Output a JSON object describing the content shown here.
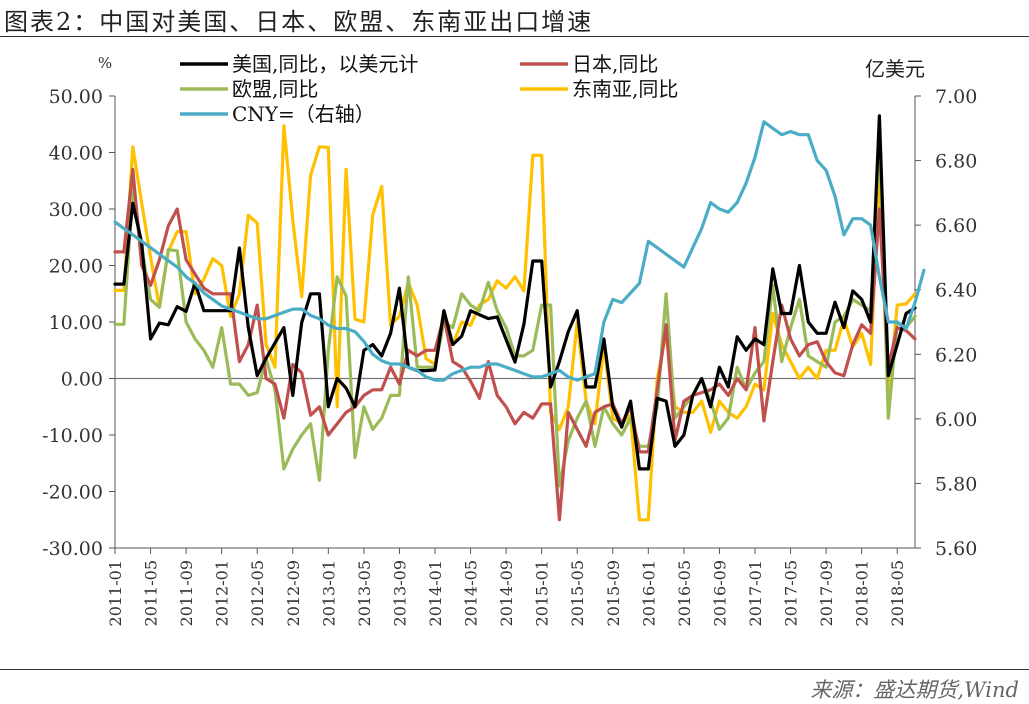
{
  "title": "图表2：中国对美国、日本、欧盟、东南亚出口增速",
  "source": "来源：盛达期货,Wind",
  "chart_data": {
    "type": "line",
    "left_unit": "%",
    "right_unit": "亿美元",
    "left_axis": {
      "min": -30,
      "max": 50,
      "ticks": [
        "50.00",
        "40.00",
        "30.00",
        "20.00",
        "10.00",
        "0.00",
        "-10.00",
        "-20.00",
        "-30.00"
      ]
    },
    "right_axis": {
      "min": 5.6,
      "max": 7.0,
      "ticks": [
        "7.00",
        "6.80",
        "6.60",
        "6.40",
        "6.20",
        "6.00",
        "5.80",
        "5.60"
      ]
    },
    "x_ticks": [
      "2011-01",
      "2011-05",
      "2011-09",
      "2012-01",
      "2012-05",
      "2012-09",
      "2013-01",
      "2013-05",
      "2013-09",
      "2014-01",
      "2014-05",
      "2014-09",
      "2015-01",
      "2015-05",
      "2015-09",
      "2016-01",
      "2016-05",
      "2016-09",
      "2017-01",
      "2017-05",
      "2017-09",
      "2018-01",
      "2018-05"
    ],
    "x_start": "2011-01",
    "legend": [
      {
        "name": "美国,同比，以美元计",
        "color": "#000000"
      },
      {
        "name": "日本,同比",
        "color": "#c0504d"
      },
      {
        "name": "欧盟,同比",
        "color": "#9bbb59"
      },
      {
        "name": "东南亚,同比",
        "color": "#ffc000"
      },
      {
        "name": "CNY=（右轴）",
        "color": "#4bacc6"
      }
    ],
    "series": [
      {
        "name": "美国,同比，以美元计",
        "axis": "left",
        "color": "#000000",
        "values": [
          16.7,
          16.7,
          31,
          24,
          7,
          9.8,
          9.5,
          12.7,
          11.9,
          16.9,
          12,
          12,
          12,
          12,
          23.1,
          9,
          0.5,
          3.6,
          6.3,
          9,
          -3,
          9.9,
          15,
          15,
          -5,
          0,
          -1.7,
          -5,
          5,
          6,
          4,
          8,
          16,
          2,
          1.4,
          1.4,
          1.5,
          12,
          6,
          7.5,
          12,
          11.3,
          10.6,
          10.9,
          6.9,
          2.9,
          9.6,
          20.8,
          20.8,
          -1.5,
          3,
          8.3,
          12,
          -1.5,
          -1.5,
          7,
          -5,
          -8.6,
          -4,
          -16,
          -16,
          -3.5,
          -4,
          -12,
          -10,
          -3,
          0,
          -5,
          2,
          -1.5,
          7.4,
          5,
          7,
          6,
          19.4,
          11.5,
          11.5,
          20,
          10,
          8,
          8,
          13.5,
          9,
          15.5,
          14,
          10,
          46.5,
          0.5,
          6,
          11.5,
          12.5
        ]
      },
      {
        "name": "日本,同比",
        "axis": "left",
        "color": "#c0504d",
        "values": [
          22.4,
          22.4,
          37,
          20,
          16.5,
          21,
          27,
          30,
          21,
          18.5,
          16,
          15,
          15,
          15,
          3,
          6,
          13,
          0,
          -1,
          -7,
          2.5,
          1,
          -6.5,
          -5,
          -10,
          -8,
          -6,
          -5,
          -3,
          -2,
          -2,
          2,
          -1,
          5,
          4,
          5,
          5,
          11,
          3,
          2,
          -0.5,
          -3.5,
          3,
          -3,
          -5,
          -8,
          -6,
          -7,
          -4.5,
          -4.5,
          -25,
          -6,
          -9,
          -12,
          -6,
          -5,
          -4.5,
          -8,
          -5,
          -13,
          -13,
          -2,
          9.5,
          -11,
          -4,
          -3,
          -2.5,
          -2,
          -1,
          -3,
          0,
          -2,
          9,
          -7.5,
          3,
          13,
          7,
          4,
          6,
          6.5,
          3,
          1,
          0.5,
          6,
          9.5,
          8,
          30,
          2,
          9,
          8.5,
          7
        ]
      },
      {
        "name": "欧盟,同比",
        "axis": "left",
        "color": "#9bbb59",
        "values": [
          9.6,
          9.6,
          34,
          23,
          14,
          12.6,
          22.8,
          22.6,
          10,
          7,
          5,
          2,
          9,
          -1,
          -1,
          -3,
          -2.5,
          3.5,
          -2,
          -16,
          -12.5,
          -10,
          -8,
          -18,
          5,
          18,
          14.6,
          -14,
          -5,
          -9,
          -7,
          -3,
          -3,
          18,
          2,
          2,
          2,
          10,
          9,
          15,
          13,
          12,
          17,
          12,
          9,
          4,
          4,
          5,
          13,
          13,
          -19,
          -11,
          -7,
          -4,
          -12,
          -5,
          -8,
          -10,
          -7,
          -12,
          -12,
          -5,
          15,
          -7,
          -5,
          -3,
          0,
          -4,
          -9,
          -7,
          2,
          -2,
          1,
          3,
          16.5,
          3,
          9,
          14,
          4,
          3,
          2,
          10,
          11,
          14,
          13,
          12,
          43,
          -7,
          10,
          9,
          11
        ]
      },
      {
        "name": "东南亚,同比",
        "axis": "left",
        "color": "#ffc000",
        "values": [
          15.6,
          15.6,
          41,
          31,
          21.5,
          12.6,
          22.5,
          26,
          26,
          15,
          17.6,
          21.2,
          20,
          11,
          15,
          28.9,
          27.5,
          6,
          2,
          44.7,
          28,
          14.5,
          36,
          41,
          40.9,
          -5,
          37,
          10.5,
          10,
          29,
          34,
          9.5,
          11,
          17,
          13,
          3.5,
          2.5,
          12,
          6,
          10,
          9.4,
          13,
          14,
          17.3,
          16,
          18,
          15.5,
          39.5,
          39.5,
          -6,
          -9,
          -5,
          10,
          -4,
          -8,
          6,
          -7,
          -8,
          -6.5,
          -25,
          -25,
          0,
          8,
          -5,
          -6,
          -6,
          -4,
          -9.5,
          -4,
          -6,
          -7,
          -5,
          -1,
          -2,
          11.5,
          6,
          3,
          0,
          2,
          0,
          5,
          5,
          10.5,
          5.6,
          8,
          2.5,
          37,
          -4,
          13,
          13.2,
          15
        ]
      },
      {
        "name": "CNY=（右轴）",
        "axis": "right",
        "color": "#4bacc6",
        "values": [
          6.61,
          6.59,
          6.57,
          6.55,
          6.53,
          6.51,
          6.49,
          6.47,
          6.44,
          6.42,
          6.39,
          6.37,
          6.35,
          6.34,
          6.33,
          6.32,
          6.31,
          6.31,
          6.32,
          6.33,
          6.34,
          6.34,
          6.32,
          6.31,
          6.29,
          6.28,
          6.28,
          6.27,
          6.24,
          6.2,
          6.18,
          6.17,
          6.17,
          6.16,
          6.15,
          6.13,
          6.12,
          6.12,
          6.14,
          6.15,
          6.16,
          6.16,
          6.17,
          6.17,
          6.16,
          6.15,
          6.14,
          6.13,
          6.13,
          6.14,
          6.15,
          6.13,
          6.12,
          6.13,
          6.14,
          6.3,
          6.37,
          6.36,
          6.39,
          6.42,
          6.55,
          6.53,
          6.51,
          6.49,
          6.47,
          6.53,
          6.59,
          6.67,
          6.65,
          6.64,
          6.67,
          6.73,
          6.81,
          6.92,
          6.9,
          6.88,
          6.89,
          6.88,
          6.88,
          6.8,
          6.77,
          6.69,
          6.57,
          6.62,
          6.62,
          6.6,
          6.44,
          6.3,
          6.3,
          6.28,
          6.36,
          6.46
        ]
      }
    ]
  }
}
